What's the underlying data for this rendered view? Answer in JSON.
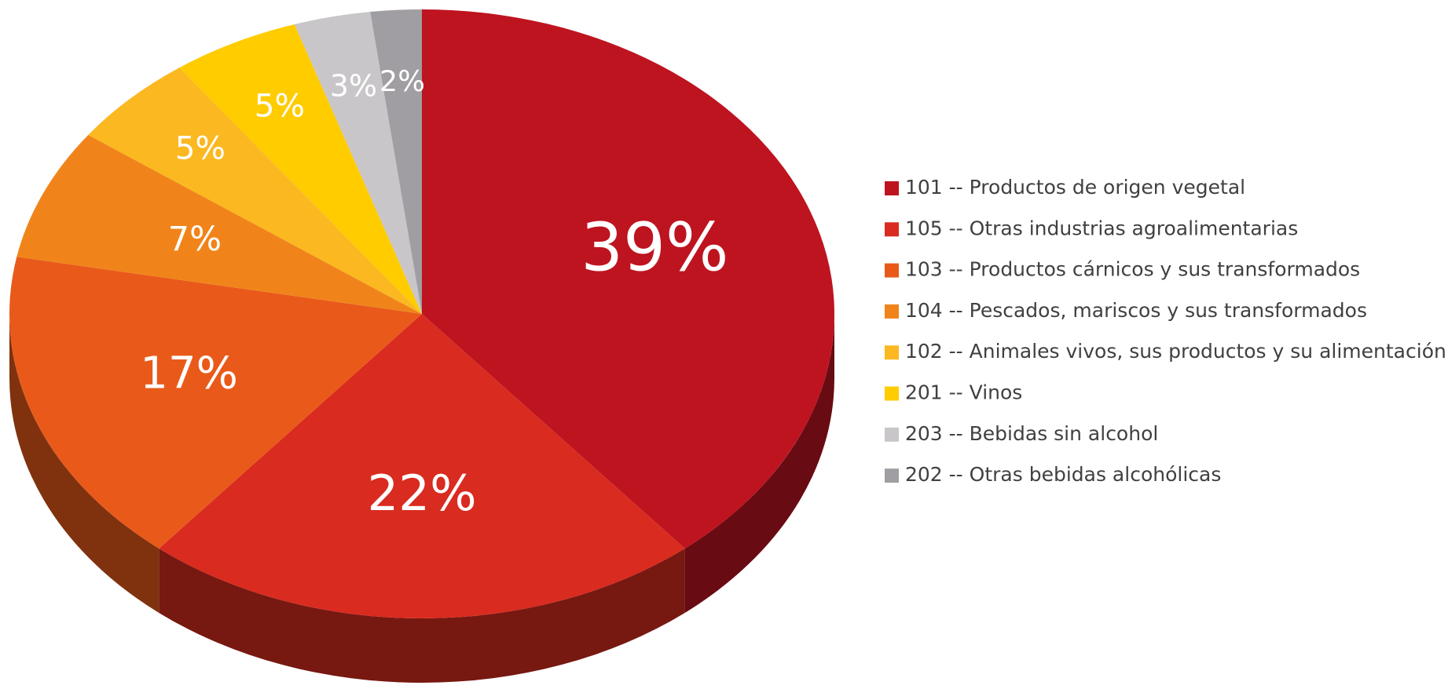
{
  "chart_data": {
    "type": "pie",
    "categories": [
      "101 -- Productos de origen vegetal",
      "105 -- Otras industrias agroalimentarias",
      "103 -- Productos cárnicos y sus transformados",
      "104 -- Pescados, mariscos y sus transformados",
      "102 -- Animales vivos, sus productos y su alimentación",
      "201 -- Vinos",
      "203 -- Bebidas sin alcohol",
      "202 -- Otras bebidas alcohólicas"
    ],
    "values": [
      39,
      22,
      17,
      7,
      5,
      5,
      3,
      2
    ],
    "value_labels": [
      "39%",
      "22%",
      "17%",
      "7%",
      "5%",
      "5%",
      "3%",
      "2%"
    ],
    "colors": [
      "#be1420",
      "#d92b1f",
      "#e95a1a",
      "#f0841a",
      "#fbb820",
      "#ffcc00",
      "#c8c6c8",
      "#a09ea2"
    ],
    "legend": "right"
  }
}
